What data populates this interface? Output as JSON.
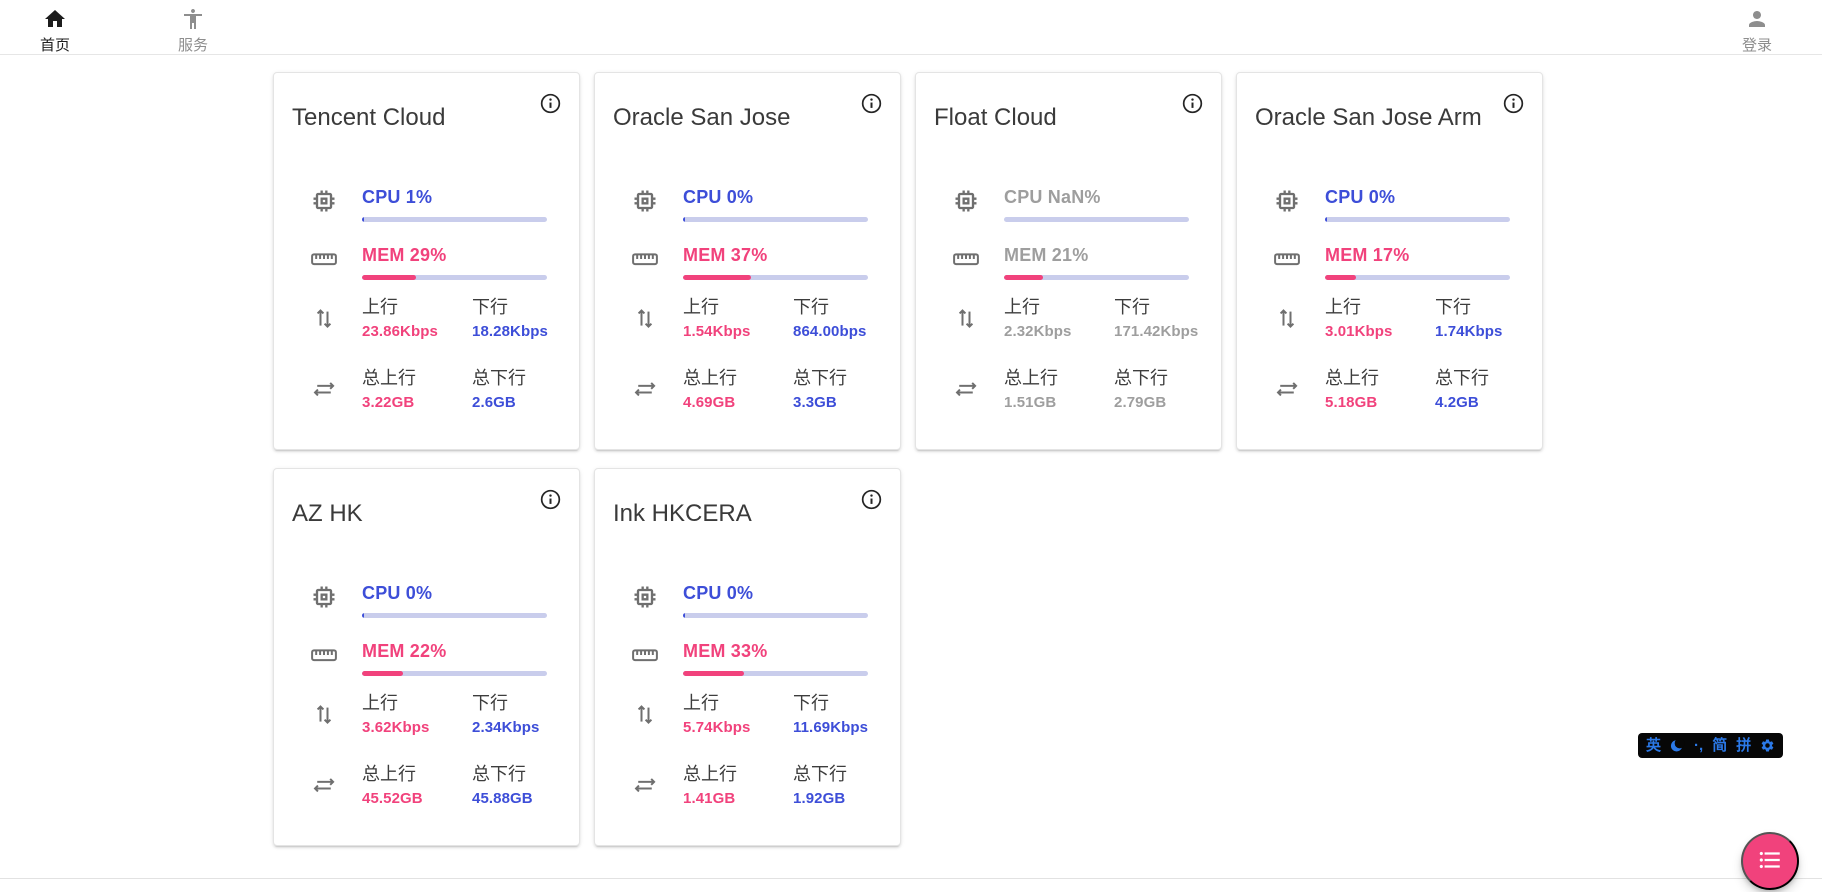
{
  "nav": {
    "home": {
      "label": "首页"
    },
    "services": {
      "label": "服务"
    },
    "login": {
      "label": "登录"
    }
  },
  "labels": {
    "upload": "上行",
    "download": "下行",
    "total_upload": "总上行",
    "total_download": "总下行"
  },
  "colors": {
    "blue": "#3d4ed8",
    "pink": "#f1427c",
    "gray": "#9e9e9e",
    "track": "#c9cdec",
    "ime-blue": "#2b79e8"
  },
  "servers": [
    {
      "name": "Tencent Cloud",
      "cpu_label": "CPU 1%",
      "cpu_pct": 1,
      "mem_label": "MEM 29%",
      "mem_pct": 29,
      "up": "23.86Kbps",
      "down": "18.28Kbps",
      "total_up": "3.22GB",
      "total_down": "2.6GB",
      "online": true
    },
    {
      "name": "Oracle San Jose",
      "cpu_label": "CPU 0%",
      "cpu_pct": 0,
      "mem_label": "MEM 37%",
      "mem_pct": 37,
      "up": "1.54Kbps",
      "down": "864.00bps",
      "total_up": "4.69GB",
      "total_down": "3.3GB",
      "online": true
    },
    {
      "name": "Float Cloud",
      "cpu_label": "CPU NaN%",
      "cpu_pct": null,
      "mem_label": "MEM 21%",
      "mem_pct": 21,
      "up": "2.32Kbps",
      "down": "171.42Kbps",
      "total_up": "1.51GB",
      "total_down": "2.79GB",
      "online": false
    },
    {
      "name": "Oracle San Jose Arm",
      "cpu_label": "CPU 0%",
      "cpu_pct": 0,
      "mem_label": "MEM 17%",
      "mem_pct": 17,
      "up": "3.01Kbps",
      "down": "1.74Kbps",
      "total_up": "5.18GB",
      "total_down": "4.2GB",
      "online": true
    },
    {
      "name": "AZ HK",
      "cpu_label": "CPU 0%",
      "cpu_pct": 0,
      "mem_label": "MEM 22%",
      "mem_pct": 22,
      "up": "3.62Kbps",
      "down": "2.34Kbps",
      "total_up": "45.52GB",
      "total_down": "45.88GB",
      "online": true
    },
    {
      "name": "Ink HKCERA",
      "cpu_label": "CPU 0%",
      "cpu_pct": 0,
      "mem_label": "MEM 33%",
      "mem_pct": 33,
      "up": "5.74Kbps",
      "down": "11.69Kbps",
      "total_up": "1.41GB",
      "total_down": "1.92GB",
      "online": true
    }
  ],
  "ime": {
    "english": "英",
    "punct": "·,",
    "simplified": "简",
    "pinyin": "拼"
  }
}
